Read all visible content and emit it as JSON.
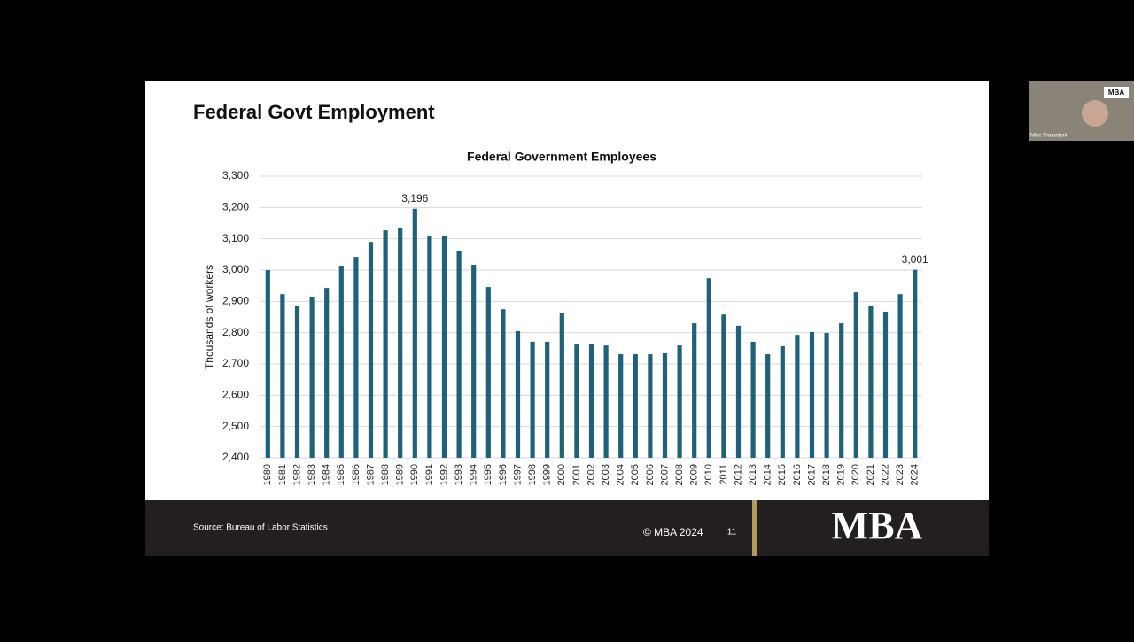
{
  "slide": {
    "title": "Federal Govt Employment",
    "source": "Source: Bureau of Labor Statistics",
    "copyright": "© MBA 2024",
    "page_number": "11",
    "logo": "MBA"
  },
  "participant": {
    "name": "Mike Fratantoni",
    "badge": "MBA"
  },
  "chart_data": {
    "type": "bar",
    "title": "Federal Government Employees",
    "y_label": "Thousands of workers",
    "color": "#1f6178",
    "categories": [
      "1980",
      "1981",
      "1982",
      "1983",
      "1984",
      "1985",
      "1986",
      "1987",
      "1988",
      "1989",
      "1990",
      "1991",
      "1992",
      "1993",
      "1994",
      "1995",
      "1996",
      "1997",
      "1998",
      "1999",
      "2000",
      "2001",
      "2002",
      "2003",
      "2004",
      "2005",
      "2006",
      "2007",
      "2008",
      "2009",
      "2010",
      "2011",
      "2012",
      "2013",
      "2014",
      "2015",
      "2016",
      "2017",
      "2018",
      "2019",
      "2020",
      "2021",
      "2022",
      "2023",
      "2024"
    ],
    "values": [
      3000,
      2923,
      2884,
      2915,
      2943,
      3014,
      3042,
      3090,
      3127,
      3136,
      3196,
      3110,
      3110,
      3062,
      3017,
      2946,
      2875,
      2805,
      2771,
      2771,
      2864,
      2762,
      2765,
      2759,
      2731,
      2731,
      2731,
      2734,
      2759,
      2830,
      2974,
      2858,
      2822,
      2771,
      2731,
      2757,
      2793,
      2802,
      2799,
      2830,
      2929,
      2887,
      2867,
      2923,
      3001
    ],
    "value_labels": [
      null,
      null,
      null,
      null,
      null,
      null,
      null,
      null,
      null,
      null,
      "3,196",
      null,
      null,
      null,
      null,
      null,
      null,
      null,
      null,
      null,
      null,
      null,
      null,
      null,
      null,
      null,
      null,
      null,
      null,
      null,
      null,
      null,
      null,
      null,
      null,
      null,
      null,
      null,
      null,
      null,
      null,
      null,
      null,
      null,
      "3,001"
    ],
    "ylim": [
      2400,
      3300
    ],
    "yticks": [
      {
        "value": 2400,
        "label": "2,400"
      },
      {
        "value": 2500,
        "label": "2,500"
      },
      {
        "value": 2600,
        "label": "2,600"
      },
      {
        "value": 2700,
        "label": "2,700"
      },
      {
        "value": 2800,
        "label": "2,800"
      },
      {
        "value": 2900,
        "label": "2,900"
      },
      {
        "value": 3000,
        "label": "3,000"
      },
      {
        "value": 3100,
        "label": "3,100"
      },
      {
        "value": 3200,
        "label": "3,200"
      },
      {
        "value": 3300,
        "label": "3,300"
      }
    ],
    "grid": true
  }
}
